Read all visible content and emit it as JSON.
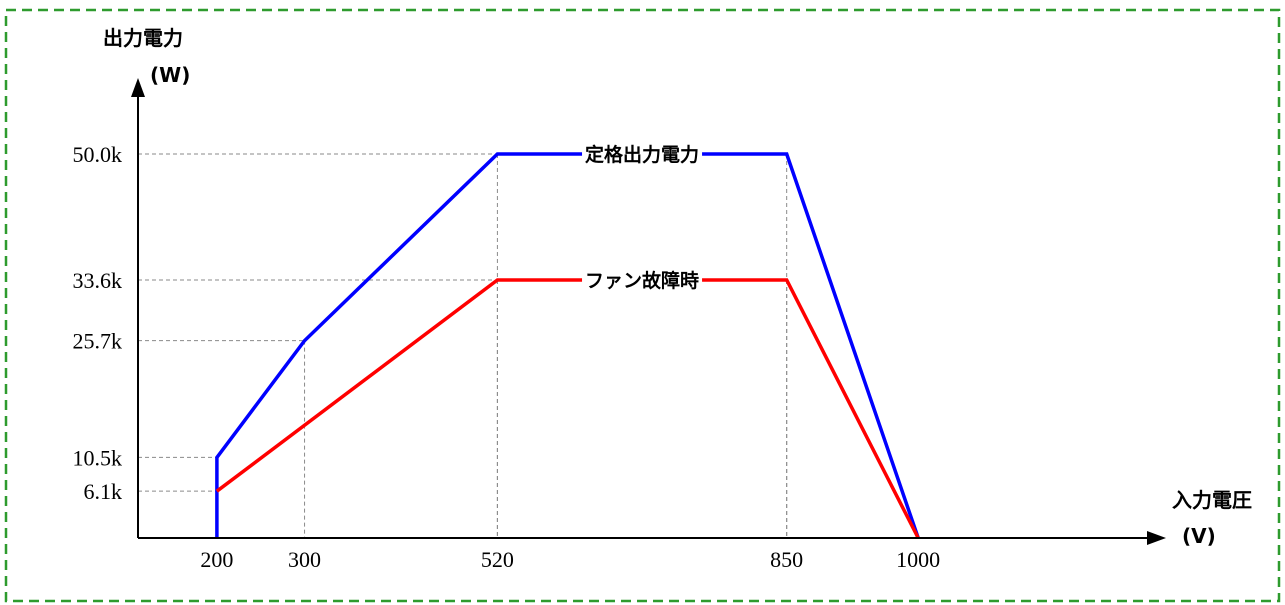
{
  "chart_data": {
    "type": "line",
    "title": "",
    "xlabel": "入力電圧",
    "xunit": "(V)",
    "ylabel": "出力電力",
    "yunit": "(W)",
    "xlim": [
      110,
      1060
    ],
    "ylim": [
      0,
      62000
    ],
    "x_ticks": [
      {
        "value": 200,
        "label": "200"
      },
      {
        "value": 300,
        "label": "300"
      },
      {
        "value": 520,
        "label": "520"
      },
      {
        "value": 850,
        "label": "850"
      },
      {
        "value": 1000,
        "label": "1000"
      }
    ],
    "y_ticks": [
      {
        "value": 50000,
        "label": "50.0k"
      },
      {
        "value": 33600,
        "label": "33.6k"
      },
      {
        "value": 25700,
        "label": "25.7k"
      },
      {
        "value": 10500,
        "label": "10.5k"
      },
      {
        "value": 6100,
        "label": "6.1k"
      }
    ],
    "series": [
      {
        "name": "定格出力電力",
        "color": "#0000ff",
        "points": [
          [
            200,
            0
          ],
          [
            200,
            10500
          ],
          [
            300,
            25700
          ],
          [
            520,
            50000
          ],
          [
            850,
            50000
          ],
          [
            1000,
            0
          ]
        ],
        "label_at": 685
      },
      {
        "name": "ファン故障時",
        "color": "#ff0000",
        "points": [
          [
            200,
            6100
          ],
          [
            520,
            33600
          ],
          [
            850,
            33600
          ],
          [
            1000,
            0
          ]
        ],
        "label_at": 685
      }
    ],
    "guide_lines": [
      {
        "x": 200,
        "y": 10500
      },
      {
        "x": 200,
        "y": 6100
      },
      {
        "x": 300,
        "y": 25700
      },
      {
        "x": 520,
        "y": 50000
      },
      {
        "x": 520,
        "y": 33600
      },
      {
        "x": 850,
        "y": 50000
      },
      {
        "x": 850,
        "y": 33600
      }
    ],
    "frame_color": "#2e9b2e",
    "grid": false,
    "legend": "inline"
  }
}
